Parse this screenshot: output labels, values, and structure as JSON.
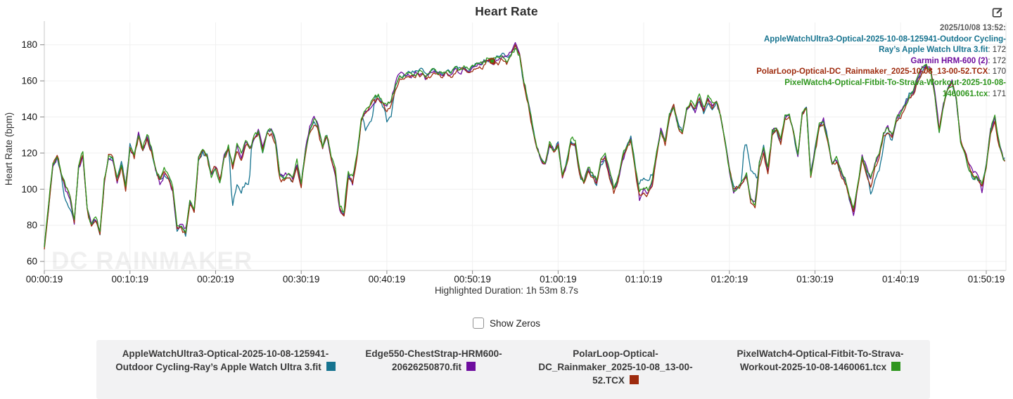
{
  "header": {
    "title": "Heart Rate",
    "edit_icon": "compose-icon"
  },
  "tooltip": {
    "timestamp": "2025/10/08 13:52:",
    "entries": [
      {
        "label": "AppleWatchUltra3-Optical-2025-10-08-125941-Outdoor Cycling-Ray’s Apple Watch Ultra 3.fit",
        "value": "172",
        "color": "#16738f"
      },
      {
        "label": "Garmin HRM-600 (2)",
        "value": "172",
        "color": "#6e0d9e"
      },
      {
        "label": "PolarLoop-Optical-DC_Rainmaker_2025-10-08_13-00-52.TCX",
        "value": "170",
        "color": "#9e2b0e"
      },
      {
        "label": "PixelWatch4-Optical-Fitbit-To-Strava-Workout-2025-10-08-1460061.tcx",
        "value": "171",
        "color": "#2f961e"
      }
    ]
  },
  "controls": {
    "show_zeros_label": "Show Zeros",
    "show_zeros_checked": false
  },
  "duration_label": "Highlighted Duration: 1h 53m 8.7s",
  "legend": {
    "items": [
      {
        "label": "AppleWatchUltra3-Optical-2025-10-08-125941-Outdoor Cycling-Ray’s Apple Watch Ultra 3.fit",
        "color": "#16738f"
      },
      {
        "label": "Edge550-ChestStrap-HRM600-20626250870.fit",
        "color": "#6e0d9e"
      },
      {
        "label": "PolarLoop-Optical-DC_Rainmaker_2025-10-08_13-00-52.TCX",
        "color": "#9e2b0e"
      },
      {
        "label": "PixelWatch4-Optical-Fitbit-To-Strava-Workout-2025-10-08-1460061.tcx",
        "color": "#2f961e"
      }
    ]
  },
  "chart_data": {
    "type": "line",
    "title": "Heart Rate",
    "ylabel": "Heart Rate (bpm)",
    "ylim": [
      55,
      190
    ],
    "yticks": [
      60,
      80,
      100,
      120,
      140,
      160,
      180
    ],
    "xtick_labels": [
      "00:00:19",
      "00:10:19",
      "00:20:19",
      "00:30:19",
      "00:40:19",
      "00:50:19",
      "01:00:19",
      "01:10:19",
      "01:20:19",
      "01:30:19",
      "01:40:19",
      "01:50:19"
    ],
    "xtick_interval_min": 10,
    "duration_min": 112.3,
    "grid": true,
    "legend_position": "bottom",
    "watermark": "DC RAINMAKER",
    "sample_interval_s": 30,
    "hr_bpm_30s": [
      67,
      90,
      112,
      117,
      108,
      100,
      96,
      82,
      112,
      119,
      90,
      80,
      84,
      77,
      104,
      119,
      117,
      106,
      114,
      101,
      123,
      118,
      130,
      120,
      128,
      122,
      110,
      104,
      109,
      106,
      99,
      78,
      80,
      76,
      92,
      88,
      117,
      121,
      119,
      108,
      112,
      105,
      118,
      123,
      113,
      124,
      119,
      125,
      123,
      129,
      132,
      122,
      131,
      133,
      126,
      108,
      106,
      108,
      105,
      113,
      102,
      121,
      133,
      137,
      133,
      122,
      129,
      117,
      108,
      88,
      85,
      108,
      104,
      118,
      138,
      143,
      146,
      149,
      151,
      147,
      144,
      148,
      157,
      163,
      163,
      164,
      163,
      164,
      165,
      163,
      164,
      165,
      164,
      164,
      165,
      164,
      166,
      165,
      167,
      166,
      168,
      169,
      170,
      171,
      172,
      171,
      172,
      173,
      172,
      175,
      179,
      174,
      158,
      148,
      135,
      123,
      117,
      114,
      125,
      120,
      124,
      107,
      114,
      127,
      125,
      110,
      104,
      112,
      108,
      103,
      115,
      119,
      108,
      99,
      104,
      116,
      123,
      128,
      112,
      98,
      100,
      98,
      103,
      120,
      133,
      127,
      140,
      146,
      135,
      130,
      143,
      147,
      144,
      150,
      143,
      150,
      146,
      148,
      140,
      126,
      110,
      99,
      101,
      104,
      108,
      94,
      92,
      114,
      123,
      110,
      131,
      134,
      127,
      140,
      141,
      131,
      118,
      142,
      145,
      108,
      122,
      136,
      138,
      128,
      114,
      117,
      110,
      105,
      95,
      88,
      102,
      117,
      110,
      104,
      112,
      118,
      130,
      133,
      128,
      137,
      141,
      146,
      151,
      153,
      162,
      167,
      169,
      166,
      152,
      131,
      146,
      155,
      158,
      150,
      126,
      120,
      111,
      107,
      106,
      102,
      112,
      131,
      139,
      125,
      116
    ],
    "series": [
      {
        "name": "AppleWatchUltra3-Optical-2025-10-08-125941-Outdoor Cycling-Ray’s Apple Watch Ultra 3.fit",
        "color": "#16738f",
        "offset_bpm": 0
      },
      {
        "name": "Garmin HRM-600 (2)",
        "color": "#6e0d9e",
        "offset_bpm": 0.5
      },
      {
        "name": "PolarLoop-Optical-DC_Rainmaker_2025-10-08_13-00-52.TCX",
        "color": "#9e2b0e",
        "offset_bpm": -0.5
      },
      {
        "name": "PixelWatch4-Optical-Fitbit-To-Strava-Workout-2025-10-08-1460061.tcx",
        "color": "#2f961e",
        "offset_bpm": 0.8
      }
    ],
    "divergences": [
      {
        "series": 0,
        "from_min": 2.0,
        "to_min": 3.3,
        "delta_bpm": -7
      },
      {
        "series": 0,
        "from_min": 21.6,
        "to_min": 24.2,
        "delta_bpm": -22
      },
      {
        "series": 0,
        "from_min": 37.2,
        "to_min": 38.6,
        "delta_bpm": -10
      },
      {
        "series": 0,
        "from_min": 39.8,
        "to_min": 40.8,
        "delta_bpm": -6
      },
      {
        "series": 0,
        "from_min": 69.3,
        "to_min": 71.2,
        "delta_bpm": 6
      },
      {
        "series": 0,
        "from_min": 81.4,
        "to_min": 83.3,
        "delta_bpm": 16
      },
      {
        "series": 0,
        "from_min": 96.2,
        "to_min": 98.2,
        "delta_bpm": -7
      },
      {
        "series": 1,
        "from_min": 69.3,
        "to_min": 69.9,
        "delta_bpm": -6
      },
      {
        "series": 1,
        "from_min": 94.2,
        "to_min": 94.9,
        "delta_bpm": -4
      },
      {
        "series": 1,
        "from_min": 109.2,
        "to_min": 109.9,
        "delta_bpm": -5
      }
    ],
    "hover_point": {
      "time_min": 52.3,
      "hr": 171
    }
  }
}
